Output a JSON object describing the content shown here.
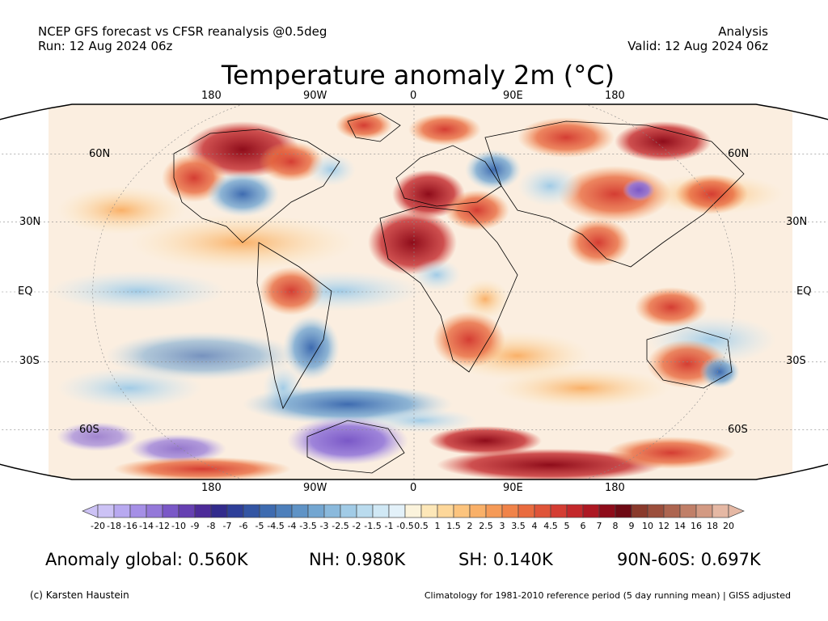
{
  "header": {
    "line1": "NCEP GFS forecast vs CFSR reanalysis @0.5deg",
    "line2": "Run: 12 Aug 2024 06z",
    "right1": "Analysis",
    "right2": "Valid: 12 Aug 2024 06z"
  },
  "title": "Temperature anomaly 2m (°C)",
  "map": {
    "projection": "Robinson",
    "lon_ticks_top": [
      "180",
      "90W",
      "0",
      "90E",
      "180"
    ],
    "lon_ticks_bottom": [
      "180",
      "90W",
      "0",
      "90E",
      "180"
    ],
    "lat_ticks_left": [
      "60N",
      "30N",
      "EQ",
      "30S",
      "60S"
    ],
    "lat_ticks_right": [
      "60N",
      "30N",
      "EQ",
      "30S",
      "60S"
    ]
  },
  "colorbar": {
    "labels": [
      "-20",
      "-18",
      "-16",
      "-14",
      "-12",
      "-10",
      "-9",
      "-8",
      "-7",
      "-6",
      "-5",
      "-4.5",
      "-4",
      "-3.5",
      "-3",
      "-2.5",
      "-2",
      "-1.5",
      "-1",
      "-0.5",
      "0.5",
      "1",
      "1.5",
      "2",
      "2.5",
      "3",
      "3.5",
      "4",
      "4.5",
      "5",
      "6",
      "7",
      "8",
      "9",
      "10",
      "12",
      "14",
      "16",
      "18",
      "20"
    ],
    "colors": [
      "#ccc2f5",
      "#b8a9f0",
      "#a58fe6",
      "#9478d9",
      "#7a58c7",
      "#6640b2",
      "#4d2b99",
      "#322b8c",
      "#2e3f99",
      "#3355a3",
      "#3e6bb0",
      "#4d7fbb",
      "#5f93c6",
      "#73a6d1",
      "#8ab9dc",
      "#a1cbe6",
      "#badbee",
      "#d0e8f5",
      "#e3f1f9",
      "#f0f0f0",
      "#fbf3dc",
      "#fde7b8",
      "#fdd79a",
      "#fcc47e",
      "#f9b068",
      "#f59a57",
      "#f08349",
      "#e96b3f",
      "#df5439",
      "#d43d33",
      "#c3282b",
      "#ad1823",
      "#8e0c1a",
      "#6e0a14",
      "#8a3a2c",
      "#9b4e3c",
      "#ad6550",
      "#c07f68",
      "#d39a83",
      "#e5b8a4"
    ]
  },
  "stats": {
    "global": "Anomaly global: 0.560K",
    "nh": "NH: 0.980K",
    "sh": "SH: 0.140K",
    "arctic": "90N-60S: 0.697K"
  },
  "footer": {
    "left": "(c) Karsten Haustein",
    "right": "Climatology for 1981-2010 reference period (5 day running mean) | GISS adjusted"
  }
}
